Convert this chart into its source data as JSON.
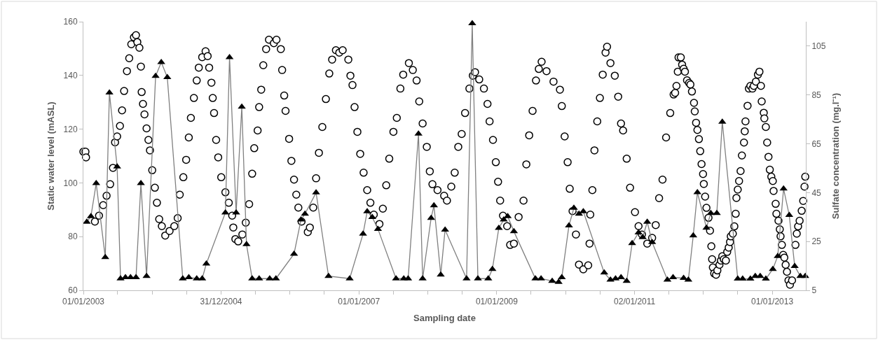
{
  "chart_data": {
    "type": "scatter",
    "xlabel": "Sampling date",
    "ylabel": "Static water level (mASL)",
    "y2label": "Sulfate concentration (mg.l⁻¹)",
    "xlim": [
      "2003-01-01",
      "2013-06-28"
    ],
    "xticks": [
      {
        "value": "2003-01-01",
        "label": "01/01/2003"
      },
      {
        "value": "2003-07-02",
        "label": null
      },
      {
        "value": "2004-01-01",
        "label": null
      },
      {
        "value": "2004-07-01",
        "label": null
      },
      {
        "value": "2004-12-31",
        "label": "31/12/2004"
      },
      {
        "value": "2005-07-02",
        "label": null
      },
      {
        "value": "2006-01-01",
        "label": null
      },
      {
        "value": "2006-07-02",
        "label": null
      },
      {
        "value": "2007-01-01",
        "label": "01/01/2007"
      },
      {
        "value": "2007-07-02",
        "label": null
      },
      {
        "value": "2008-01-01",
        "label": null
      },
      {
        "value": "2008-07-02",
        "label": null
      },
      {
        "value": "2009-01-01",
        "label": "01/01/2009"
      },
      {
        "value": "2009-07-02",
        "label": null
      },
      {
        "value": "2010-01-01",
        "label": null
      },
      {
        "value": "2010-07-02",
        "label": null
      },
      {
        "value": "2011-01-02",
        "label": "02/01/2011"
      },
      {
        "value": "2011-07-02",
        "label": null
      },
      {
        "value": "2012-01-01",
        "label": null
      },
      {
        "value": "2012-07-01",
        "label": null
      },
      {
        "value": "2013-01-01",
        "label": "01/01/2013"
      }
    ],
    "ylim": [
      60,
      160
    ],
    "yticks": [
      60,
      80,
      100,
      120,
      140,
      160
    ],
    "y2lim": [
      5,
      115
    ],
    "y2ticks": [
      5,
      25,
      45,
      65,
      85,
      105
    ],
    "series": [
      {
        "marker": "circle",
        "color": "#000000",
        "x": [
          "2003-01-01",
          "2003-01-12",
          "2003-01-15",
          "2003-03-03",
          "2003-03-25",
          "2003-04-16",
          "2003-05-04",
          "2003-05-23",
          "2003-06-07",
          "2003-06-18",
          "2003-06-29",
          "2003-07-14",
          "2003-07-25",
          "2003-08-05",
          "2003-08-20",
          "2003-09-01",
          "2003-09-12",
          "2003-09-26",
          "2003-10-07",
          "2003-10-14",
          "2003-10-25",
          "2003-11-02",
          "2003-11-06",
          "2003-11-13",
          "2003-11-21",
          "2003-12-02",
          "2003-12-12",
          "2003-12-20",
          "2004-01-01",
          "2004-01-15",
          "2004-01-26",
          "2004-02-07",
          "2004-02-21",
          "2004-03-10",
          "2004-04-02",
          "2004-04-27",
          "2004-05-15",
          "2004-05-26",
          "2004-06-14",
          "2004-06-29",
          "2004-07-13",
          "2004-07-24",
          "2004-08-09",
          "2004-08-24",
          "2004-09-04",
          "2004-09-22",
          "2004-10-10",
          "2004-10-21",
          "2004-10-29",
          "2004-11-10",
          "2004-11-17",
          "2004-11-24",
          "2004-12-05",
          "2004-12-16",
          "2005-01-01",
          "2005-01-23",
          "2005-02-10",
          "2005-02-28",
          "2005-03-06",
          "2005-03-17",
          "2005-04-01",
          "2005-04-23",
          "2005-05-11",
          "2005-05-29",
          "2005-06-14",
          "2005-06-25",
          "2005-07-13",
          "2005-07-21",
          "2005-08-01",
          "2005-08-12",
          "2005-08-27",
          "2005-09-11",
          "2005-10-07",
          "2005-10-21",
          "2005-11-13",
          "2005-11-20",
          "2005-12-01",
          "2005-12-08",
          "2005-12-27",
          "2006-01-08",
          "2006-01-22",
          "2006-02-03",
          "2006-02-14",
          "2006-03-03",
          "2006-04-05",
          "2006-04-16",
          "2006-05-04",
          "2006-05-19",
          "2006-06-03",
          "2006-06-21",
          "2006-07-10",
          "2006-07-28",
          "2006-08-12",
          "2006-09-01",
          "2006-09-19",
          "2006-10-07",
          "2006-11-06",
          "2006-11-17",
          "2006-11-28",
          "2006-12-09",
          "2006-12-24",
          "2007-01-08",
          "2007-01-26",
          "2007-02-14",
          "2007-03-03",
          "2007-03-21",
          "2007-04-20",
          "2007-05-08",
          "2007-05-26",
          "2007-06-11",
          "2007-07-03",
          "2007-07-21",
          "2007-08-09",
          "2007-08-24",
          "2007-09-23",
          "2007-10-14",
          "2007-11-03",
          "2007-11-17",
          "2007-12-05",
          "2007-12-27",
          "2008-01-12",
          "2008-01-26",
          "2008-02-22",
          "2008-03-28",
          "2008-04-12",
          "2008-05-05",
          "2008-05-23",
          "2008-06-11",
          "2008-06-29",
          "2008-07-17",
          "2008-08-09",
          "2008-08-27",
          "2008-09-08",
          "2008-09-30",
          "2008-10-25",
          "2008-11-13",
          "2008-11-24",
          "2008-12-12",
          "2008-12-27",
          "2009-01-08",
          "2009-01-19",
          "2009-02-03",
          "2009-02-25",
          "2009-03-13",
          "2009-04-02",
          "2009-04-27",
          "2009-05-23",
          "2009-06-07",
          "2009-06-22",
          "2009-07-10",
          "2009-07-28",
          "2009-08-12",
          "2009-08-27",
          "2009-09-22",
          "2009-10-29",
          "2009-12-02",
          "2009-12-12",
          "2009-12-27",
          "2010-01-12",
          "2010-01-23",
          "2010-02-07",
          "2010-02-25",
          "2010-03-13",
          "2010-04-05",
          "2010-05-01",
          "2010-05-08",
          "2010-05-12",
          "2010-05-23",
          "2010-06-03",
          "2010-06-18",
          "2010-07-02",
          "2010-07-17",
          "2010-08-01",
          "2010-08-09",
          "2010-08-27",
          "2010-09-19",
          "2010-10-07",
          "2010-10-22",
          "2010-11-02",
          "2010-11-21",
          "2010-12-09",
          "2011-01-04",
          "2011-01-23",
          "2011-02-10",
          "2011-03-10",
          "2011-04-05",
          "2011-04-24",
          "2011-05-12",
          "2011-05-30",
          "2011-06-18",
          "2011-07-10",
          "2011-07-28",
          "2011-08-05",
          "2011-08-12",
          "2011-08-19",
          "2011-08-23",
          "2011-09-04",
          "2011-09-11",
          "2011-09-19",
          "2011-09-26",
          "2011-10-07",
          "2011-10-18",
          "2011-10-25",
          "2011-11-02",
          "2011-11-13",
          "2011-11-17",
          "2011-11-24",
          "2011-12-01",
          "2011-12-09",
          "2011-12-16",
          "2011-12-23",
          "2011-12-31",
          "2012-01-04",
          "2012-01-11",
          "2012-01-18",
          "2012-01-29",
          "2012-02-06",
          "2012-02-13",
          "2012-02-17",
          "2012-02-21",
          "2012-02-28",
          "2012-03-09",
          "2012-03-16",
          "2012-03-27",
          "2012-04-04",
          "2012-04-11",
          "2012-04-19",
          "2012-04-30",
          "2012-05-07",
          "2012-05-15",
          "2012-05-22",
          "2012-05-26",
          "2012-06-06",
          "2012-06-14",
          "2012-06-21",
          "2012-06-25",
          "2012-07-02",
          "2012-07-09",
          "2012-07-17",
          "2012-07-24",
          "2012-08-04",
          "2012-08-08",
          "2012-08-12",
          "2012-08-23",
          "2012-08-30",
          "2012-09-07",
          "2012-09-18",
          "2012-09-25",
          "2012-10-06",
          "2012-10-17",
          "2012-10-25",
          "2012-11-02",
          "2012-11-06",
          "2012-11-17",
          "2012-11-20",
          "2012-11-28",
          "2012-12-05",
          "2012-12-12",
          "2012-12-19",
          "2012-12-27",
          "2013-01-04",
          "2013-01-08",
          "2013-01-19",
          "2013-01-23",
          "2013-02-03",
          "2013-02-10",
          "2013-02-14",
          "2013-02-21",
          "2013-02-28",
          "2013-03-06",
          "2013-03-13",
          "2013-03-20",
          "2013-03-28",
          "2013-04-05",
          "2013-04-16",
          "2013-05-04",
          "2013-05-11",
          "2013-05-18",
          "2013-05-26",
          "2013-06-06",
          "2013-06-14",
          "2013-06-21",
          "2013-06-25"
        ],
        "values": [
          111.6,
          111.6,
          109.5,
          85.6,
          87.8,
          91.7,
          95.2,
          99.5,
          105.6,
          115.1,
          117.3,
          121.2,
          127,
          134.2,
          141.6,
          146.4,
          151.6,
          154.2,
          155,
          152.4,
          150.3,
          143.3,
          133.8,
          129.4,
          125.5,
          120.3,
          116,
          112.1,
          104.7,
          98.2,
          92.6,
          86.5,
          83.9,
          80.4,
          82.1,
          83.9,
          86.9,
          95.6,
          102.1,
          108.6,
          116.9,
          124.2,
          131.6,
          138.1,
          142.9,
          146.8,
          149,
          147.2,
          142.9,
          137.3,
          131.6,
          126,
          116,
          109.5,
          102.1,
          96.5,
          92.6,
          87.8,
          83.4,
          79.1,
          78.2,
          80.8,
          85.2,
          92.1,
          103.4,
          112.9,
          119.5,
          128.2,
          134.7,
          143.8,
          149.8,
          153.3,
          152,
          153.3,
          149.8,
          142,
          132.5,
          126.8,
          116.4,
          108.2,
          101.2,
          95.6,
          90.8,
          85.6,
          81.7,
          83.4,
          90.8,
          101.7,
          111.2,
          120.8,
          131.2,
          140.7,
          145.9,
          149.4,
          148.5,
          149.4,
          145.9,
          139.9,
          136.4,
          128.2,
          119,
          110.8,
          103.8,
          97.3,
          92.6,
          88.2,
          84.7,
          90.4,
          99.1,
          109,
          119,
          124.2,
          135.1,
          140.3,
          144.6,
          142,
          138.1,
          130.3,
          122.1,
          113.4,
          104.3,
          99.5,
          97.3,
          95.2,
          93.4,
          98.6,
          103.8,
          113.4,
          118.2,
          126,
          135.1,
          139.9,
          141.2,
          138.5,
          135.1,
          129.4,
          122.9,
          116,
          107.7,
          100.4,
          93.4,
          87.8,
          83.9,
          76.9,
          77.4,
          87.3,
          93.4,
          106.9,
          117.7,
          126.8,
          138.1,
          142.4,
          145.1,
          141.6,
          137.7,
          134.7,
          128.6,
          117.3,
          107.7,
          97.8,
          89.5,
          80.8,
          69.6,
          67.8,
          69.3,
          77.4,
          88.2,
          97.3,
          112.1,
          122.9,
          131.6,
          140.3,
          148.5,
          150.7,
          144.6,
          139.9,
          132.1,
          122.1,
          119.5,
          109,
          98.2,
          89.1,
          83.9,
          80.8,
          77.4,
          79.5,
          84.3,
          94.3,
          101.2,
          116.9,
          126,
          132.9,
          133.5,
          136.1,
          141.4,
          146.7,
          146.7,
          144,
          142.5,
          141.4,
          138.2,
          137.2,
          136.6,
          134,
          129.8,
          126.6,
          122.4,
          119.7,
          116.3,
          111.8,
          107,
          103.3,
          99.6,
          94.9,
          90.7,
          87,
          82.2,
          76.4,
          71.6,
          68.5,
          66.3,
          65.8,
          67.4,
          69.5,
          71.1,
          72.7,
          71.6,
          71.1,
          74.3,
          75.9,
          78,
          80.1,
          81.1,
          83.8,
          88.5,
          94.4,
          97.5,
          100.7,
          104.4,
          110.2,
          115,
          119.2,
          122.9,
          128.7,
          135.1,
          136.1,
          135.1,
          136.1,
          137.7,
          140.3,
          141.4,
          136.1,
          130.3,
          126.1,
          124,
          120.8,
          115,
          109.7,
          104.9,
          102.3,
          100.7,
          97,
          92.2,
          88.5,
          85.9,
          82.7,
          80.1,
          76.9,
          73.2,
          72.2,
          69.5,
          66.9,
          63.7,
          62.1,
          63.7,
          76.9,
          81.1,
          83.8,
          85.9,
          89.6,
          93.3,
          98.6,
          102.3
        ]
      },
      {
        "type": "line",
        "axis": "y2",
        "marker": "triangle",
        "color": "#000000",
        "x": [
          "2003-01-19",
          "2003-02-10",
          "2003-03-10",
          "2003-04-27",
          "2003-05-19",
          "2003-06-29",
          "2003-07-17",
          "2003-08-12",
          "2003-09-08",
          "2003-10-07",
          "2003-11-02",
          "2003-12-02",
          "2004-01-19",
          "2004-02-18",
          "2004-03-21",
          "2004-06-11",
          "2004-07-13",
          "2004-08-24",
          "2004-09-22",
          "2004-10-14",
          "2005-01-23",
          "2005-02-14",
          "2005-03-21",
          "2005-04-20",
          "2005-05-15",
          "2005-06-14",
          "2005-07-21",
          "2005-09-15",
          "2005-10-18",
          "2006-01-22",
          "2006-02-28",
          "2006-03-21",
          "2006-05-19",
          "2006-07-24",
          "2006-11-13",
          "2007-01-23",
          "2007-02-14",
          "2007-03-13",
          "2007-04-12",
          "2007-07-17",
          "2007-08-27",
          "2007-09-19",
          "2007-11-13",
          "2007-12-05",
          "2008-01-19",
          "2008-02-03",
          "2008-03-10",
          "2008-04-02",
          "2008-07-25",
          "2008-08-24",
          "2008-09-23",
          "2008-11-17",
          "2008-12-09",
          "2009-01-12",
          "2009-02-07",
          "2009-02-28",
          "2009-04-02",
          "2009-07-25",
          "2009-08-24",
          "2009-10-22",
          "2009-11-25",
          "2009-12-12",
          "2010-01-19",
          "2010-02-14",
          "2010-03-13",
          "2010-04-05",
          "2010-07-25",
          "2010-08-27",
          "2010-09-23",
          "2010-10-22",
          "2010-11-21",
          "2010-12-20",
          "2011-01-23",
          "2011-02-14",
          "2011-03-10",
          "2011-04-05",
          "2011-06-25",
          "2011-07-25",
          "2011-09-19",
          "2011-10-14",
          "2011-11-09",
          "2011-12-01",
          "2012-01-18",
          "2012-02-10",
          "2012-03-13",
          "2012-04-11",
          "2012-07-02",
          "2012-07-28",
          "2012-09-07",
          "2012-10-03",
          "2012-10-29",
          "2012-11-28",
          "2013-01-04",
          "2013-01-30",
          "2013-03-02",
          "2013-04-01",
          "2013-04-30",
          "2013-05-30",
          "2013-06-25"
        ],
        "values": [
          33,
          35.3,
          48.8,
          18.5,
          85.9,
          55.6,
          9.8,
          10.3,
          10.3,
          10.3,
          48.8,
          10.8,
          92.7,
          98.4,
          92.2,
          9.8,
          10.3,
          9.8,
          9.8,
          15.9,
          36.8,
          100.4,
          36.8,
          80.1,
          23.8,
          9.8,
          9.8,
          9.8,
          9.8,
          19.9,
          33.9,
          36.3,
          45,
          10.8,
          9.8,
          28.1,
          37.3,
          34.9,
          30.1,
          9.8,
          9.8,
          9.8,
          69.1,
          9.8,
          34.6,
          39.7,
          11.4,
          29.8,
          9.8,
          114.3,
          9.8,
          9.8,
          13.7,
          30.5,
          33.9,
          35.3,
          29.1,
          9.8,
          9.8,
          8.8,
          8.4,
          10.3,
          31.5,
          38.7,
          36.3,
          37.3,
          12.2,
          9.3,
          9.8,
          10.3,
          8.8,
          24.3,
          28.6,
          26.7,
          33,
          24.7,
          9.3,
          10.3,
          10,
          9.3,
          27.4,
          45.1,
          30.6,
          36.6,
          36.6,
          74,
          9.7,
          9.7,
          9.7,
          10.8,
          10.8,
          9.7,
          13.7,
          19,
          46.6,
          35.8,
          14.9,
          10.8,
          10.8
        ]
      }
    ]
  }
}
